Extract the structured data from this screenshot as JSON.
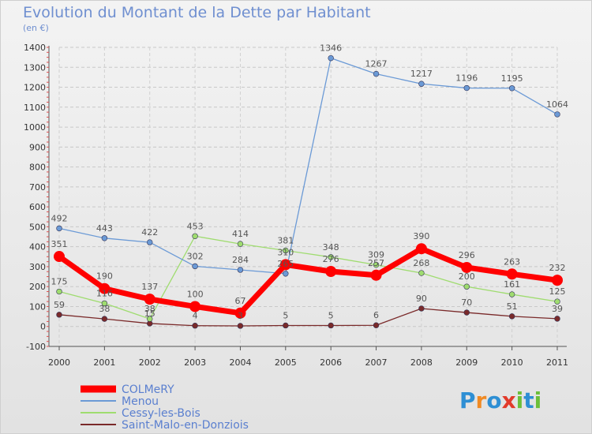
{
  "title": "Evolution du Montant de la Dette par Habitant",
  "subtitle": "(en €)",
  "brand": "Proxiti",
  "chart_data": {
    "type": "line",
    "title": "Evolution du Montant de la Dette par Habitant",
    "ylabel": "(en €)",
    "x": [
      "2000",
      "2001",
      "2002",
      "2003",
      "2004",
      "2005",
      "2006",
      "2007",
      "2008",
      "2009",
      "2010",
      "2011"
    ],
    "ylim": [
      -100,
      1400
    ],
    "yticks": [
      -100,
      0,
      100,
      200,
      300,
      400,
      500,
      600,
      700,
      800,
      900,
      1000,
      1100,
      1200,
      1300,
      1400
    ],
    "grid": true,
    "legend": "bottom-left",
    "series": [
      {
        "name": "Saint-Malo-en-Donziois",
        "color": "#7a2a2a",
        "values": [
          59,
          38,
          15,
          4,
          3,
          5,
          5,
          6,
          90,
          70,
          51,
          39
        ],
        "labels": [
          "59",
          "38",
          "15",
          "4",
          "3",
          "5",
          "5",
          "6",
          "90",
          "70",
          "51",
          "39"
        ]
      },
      {
        "name": "Cessy-les-Bois",
        "color": "#9fdc6f",
        "values": [
          175,
          116,
          38,
          453,
          414,
          381,
          348,
          309,
          268,
          200,
          161,
          125
        ],
        "labels": [
          "175",
          "116",
          "38",
          "453",
          "414",
          "381",
          "348",
          "309",
          "268",
          "200",
          "161",
          "125"
        ]
      },
      {
        "name": "Menou",
        "color": "#6b9ad6",
        "values": [
          492,
          443,
          422,
          302,
          284,
          265,
          1346,
          1267,
          1217,
          1196,
          1195,
          1064
        ],
        "labels": [
          "492",
          "443",
          "422",
          "302",
          "284",
          "265",
          "1346",
          "1267",
          "1217",
          "1196",
          "1195",
          "1064"
        ]
      },
      {
        "name": "COLMeRY",
        "color": "#ff0000",
        "values": [
          351,
          190,
          137,
          100,
          67,
          310,
          276,
          257,
          390,
          296,
          263,
          232
        ],
        "labels": [
          "351",
          "190",
          "137",
          "100",
          "67",
          "310",
          "276",
          "257",
          "390",
          "296",
          "263",
          "232"
        ]
      }
    ]
  }
}
